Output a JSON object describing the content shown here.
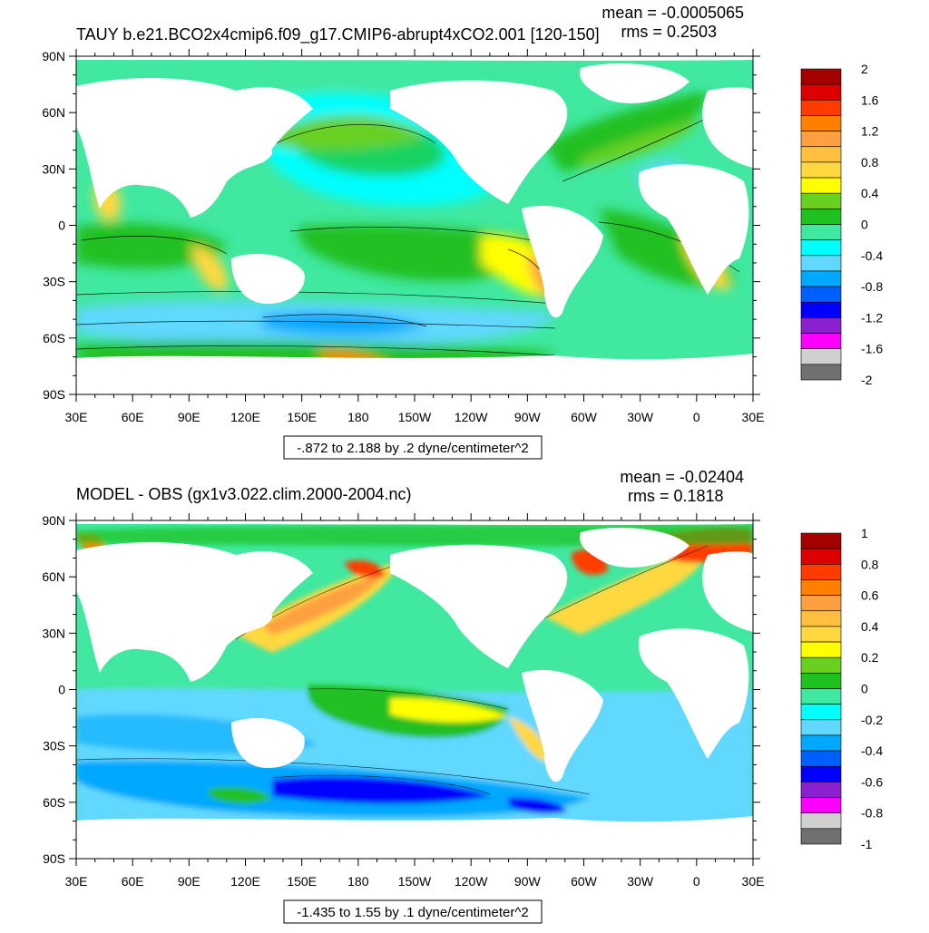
{
  "panels": [
    {
      "title": "TAUY b.e21.BCO2x4cmip6.f09_g17.CMIP6-abrupt4xCO2.001 [120-150]",
      "mean_text": "mean = -0.0005065",
      "rms_text": "rms = 0.2503",
      "range_text": "-.872 to 2.188 by .2 dyne/centimeter^2",
      "lat_labels": [
        "90N",
        "60N",
        "30N",
        "0",
        "30S",
        "60S",
        "90S"
      ],
      "lon_labels": [
        "30E",
        "60E",
        "90E",
        "120E",
        "150E",
        "180",
        "150W",
        "120W",
        "90W",
        "60W",
        "30W",
        "0",
        "30E"
      ],
      "colorbar": {
        "labels": [
          "2",
          "1.6",
          "1.2",
          "0.8",
          "0.4",
          "0",
          "-0.4",
          "-0.8",
          "-1.2",
          "-1.6",
          "-2"
        ],
        "colors": [
          "#a50000",
          "#dd0000",
          "#ff3c00",
          "#ff8000",
          "#ffa040",
          "#ffc040",
          "#ffd840",
          "#ffff00",
          "#68d020",
          "#20c020",
          "#40e8a0",
          "#00ffff",
          "#60d8ff",
          "#00a8ff",
          "#0060ff",
          "#0000ff",
          "#8a20d0",
          "#ff00ff",
          "#d0d0d0",
          "#707070"
        ]
      }
    },
    {
      "title": "MODEL - OBS (gx1v3.022.clim.2000-2004.nc)",
      "mean_text": "mean = -0.02404",
      "rms_text": "rms = 0.1818",
      "range_text": "-1.435 to 1.55 by .1 dyne/centimeter^2",
      "lat_labels": [
        "90N",
        "60N",
        "30N",
        "0",
        "30S",
        "60S",
        "90S"
      ],
      "lon_labels": [
        "30E",
        "60E",
        "90E",
        "120E",
        "150E",
        "180",
        "150W",
        "120W",
        "90W",
        "60W",
        "30W",
        "0",
        "30E"
      ],
      "colorbar": {
        "labels": [
          "1",
          "0.8",
          "0.6",
          "0.4",
          "0.2",
          "0",
          "-0.2",
          "-0.4",
          "-0.6",
          "-0.8",
          "-1"
        ],
        "colors": [
          "#a50000",
          "#dd0000",
          "#ff3c00",
          "#ff8000",
          "#ffa040",
          "#ffc040",
          "#ffd840",
          "#ffff00",
          "#68d020",
          "#20c020",
          "#40e8a0",
          "#00ffff",
          "#60d8ff",
          "#00a8ff",
          "#0060ff",
          "#0000ff",
          "#8a20d0",
          "#ff00ff",
          "#d0d0d0",
          "#707070"
        ]
      }
    }
  ],
  "chart_data": [
    {
      "type": "heatmap",
      "title": "TAUY b.e21.BCO2x4cmip6.f09_g17.CMIP6-abrupt4xCO2.001 [120-150]",
      "subtitle": "mean = -0.0005065, rms = 0.2503",
      "annotation": "-.872 to 2.188 by .2 dyne/centimeter^2",
      "x_ticks": [
        "30E",
        "60E",
        "90E",
        "120E",
        "150E",
        "180",
        "150W",
        "120W",
        "90W",
        "60W",
        "30W",
        "0",
        "30E"
      ],
      "y_ticks": [
        "90N",
        "60N",
        "30N",
        "0",
        "30S",
        "60S",
        "90S"
      ],
      "xlim": [
        30,
        390
      ],
      "ylim": [
        -90,
        90
      ],
      "colorbar_ticks": [
        2,
        1.6,
        1.2,
        0.8,
        0.4,
        0,
        -0.4,
        -0.8,
        -1.2,
        -1.6,
        -2
      ],
      "color_range": [
        -2,
        2
      ],
      "data_range": [
        -0.872,
        2.188
      ],
      "contour_interval": 0.2,
      "units": "dyne/centimeter^2",
      "mean": -0.0005065,
      "rms": 0.2503
    },
    {
      "type": "heatmap",
      "title": "MODEL - OBS (gx1v3.022.clim.2000-2004.nc)",
      "subtitle": "mean = -0.02404, rms = 0.1818",
      "annotation": "-1.435 to 1.55 by .1 dyne/centimeter^2",
      "x_ticks": [
        "30E",
        "60E",
        "90E",
        "120E",
        "150E",
        "180",
        "150W",
        "120W",
        "90W",
        "60W",
        "30W",
        "0",
        "30E"
      ],
      "y_ticks": [
        "90N",
        "60N",
        "30N",
        "0",
        "30S",
        "60S",
        "90S"
      ],
      "xlim": [
        30,
        390
      ],
      "ylim": [
        -90,
        90
      ],
      "colorbar_ticks": [
        1,
        0.8,
        0.6,
        0.4,
        0.2,
        0,
        -0.2,
        -0.4,
        -0.6,
        -0.8,
        -1
      ],
      "color_range": [
        -1,
        1
      ],
      "data_range": [
        -1.435,
        1.55
      ],
      "contour_interval": 0.1,
      "units": "dyne/centimeter^2",
      "mean": -0.02404,
      "rms": 0.1818
    }
  ]
}
